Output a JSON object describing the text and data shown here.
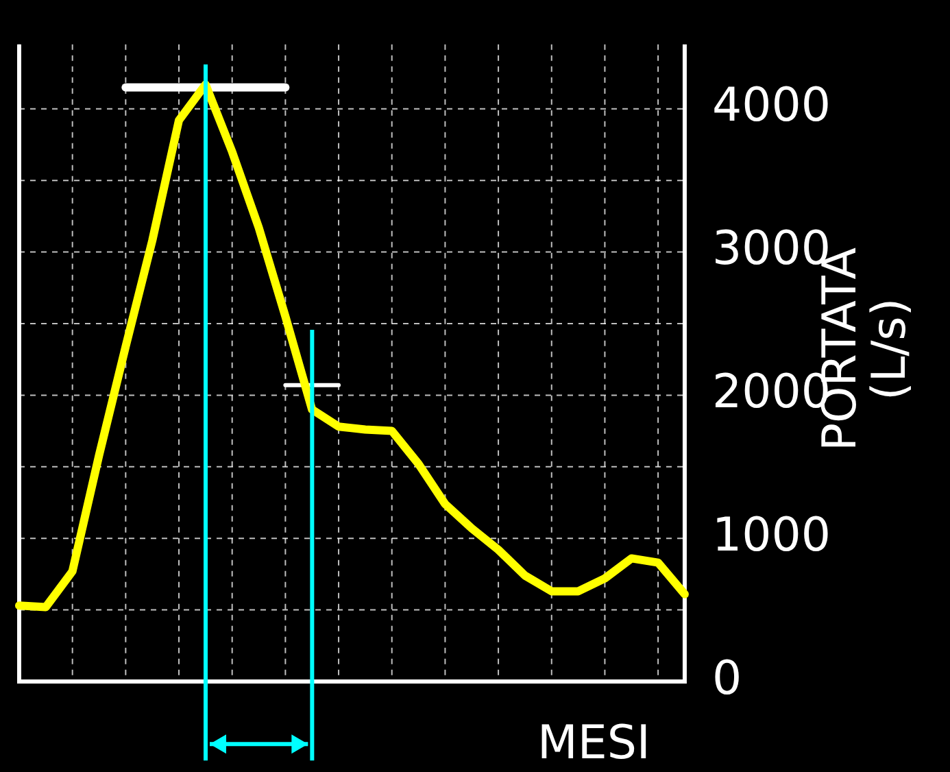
{
  "chart_data": {
    "type": "line",
    "xlabel": "MESI",
    "ylabel": "PORTATA\n(L/s)",
    "categories": [
      null,
      null,
      null,
      null,
      null,
      null,
      null,
      null,
      null,
      null,
      null,
      null,
      null,
      null,
      null,
      null,
      null,
      null,
      null,
      null,
      null,
      null,
      null,
      null,
      null,
      null
    ],
    "ylim": [
      0,
      4450
    ],
    "yticks": [
      0,
      {
        "value": 500,
        "label": null
      },
      1000,
      {
        "value": 1500,
        "label": null
      },
      2000,
      {
        "value": 2500,
        "label": null
      },
      3000,
      {
        "value": 3500,
        "label": null
      },
      4000
    ],
    "grid": true,
    "tick_labels": "y",
    "marker": "none",
    "series": [
      {
        "color": "#ffff00",
        "values": [
          530,
          520,
          770,
          1580,
          2340,
          3080,
          3920,
          4170,
          3700,
          3170,
          2550,
          1900,
          1780,
          1760,
          1750,
          1520,
          1240,
          1070,
          920,
          740,
          630,
          630,
          720,
          860,
          830,
          610
        ]
      },
      {
        "color": "#ffffff",
        "values": [
          null,
          null,
          null,
          null,
          4150,
          4150,
          4150,
          4150,
          4150,
          4150,
          4150,
          null,
          null,
          null,
          null,
          null,
          null,
          null,
          null,
          null,
          null,
          null,
          null,
          null,
          null,
          null
        ]
      },
      {
        "color": "#ffffff",
        "values": [
          null,
          null,
          null,
          null,
          null,
          null,
          null,
          null,
          null,
          null,
          2070,
          2070,
          2070,
          null,
          null,
          null,
          null,
          null,
          null,
          null,
          null,
          null,
          null,
          null,
          null,
          null
        ]
      }
    ]
  }
}
